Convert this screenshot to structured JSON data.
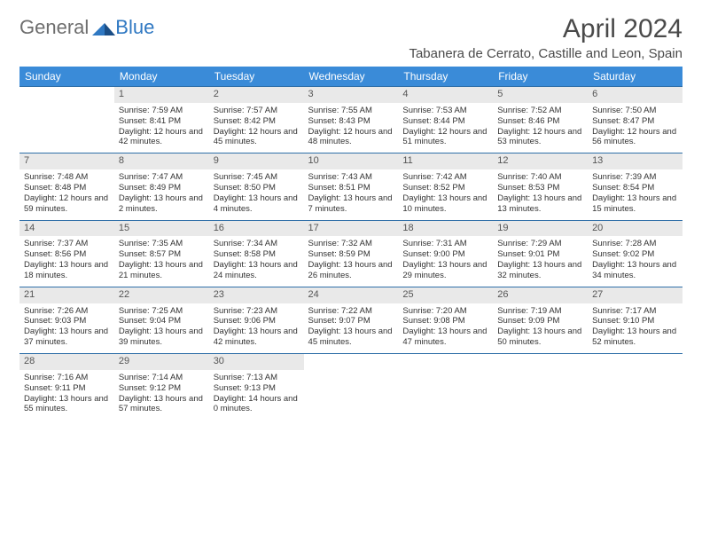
{
  "logo": {
    "word1": "General",
    "word2": "Blue",
    "word_color": "#6e6e6e",
    "accent_color": "#2f78c2"
  },
  "title": "April 2024",
  "location": "Tabanera de Cerrato, Castille and Leon, Spain",
  "header_bg": "#3a8bd8",
  "header_fg": "#ffffff",
  "daynum_bg": "#e9e9e9",
  "week_border": "#2f6fa8",
  "day_names": [
    "Sunday",
    "Monday",
    "Tuesday",
    "Wednesday",
    "Thursday",
    "Friday",
    "Saturday"
  ],
  "weeks": [
    [
      {
        "n": "",
        "lines": []
      },
      {
        "n": "1",
        "lines": [
          "Sunrise: 7:59 AM",
          "Sunset: 8:41 PM",
          "Daylight: 12 hours and 42 minutes."
        ]
      },
      {
        "n": "2",
        "lines": [
          "Sunrise: 7:57 AM",
          "Sunset: 8:42 PM",
          "Daylight: 12 hours and 45 minutes."
        ]
      },
      {
        "n": "3",
        "lines": [
          "Sunrise: 7:55 AM",
          "Sunset: 8:43 PM",
          "Daylight: 12 hours and 48 minutes."
        ]
      },
      {
        "n": "4",
        "lines": [
          "Sunrise: 7:53 AM",
          "Sunset: 8:44 PM",
          "Daylight: 12 hours and 51 minutes."
        ]
      },
      {
        "n": "5",
        "lines": [
          "Sunrise: 7:52 AM",
          "Sunset: 8:46 PM",
          "Daylight: 12 hours and 53 minutes."
        ]
      },
      {
        "n": "6",
        "lines": [
          "Sunrise: 7:50 AM",
          "Sunset: 8:47 PM",
          "Daylight: 12 hours and 56 minutes."
        ]
      }
    ],
    [
      {
        "n": "7",
        "lines": [
          "Sunrise: 7:48 AM",
          "Sunset: 8:48 PM",
          "Daylight: 12 hours and 59 minutes."
        ]
      },
      {
        "n": "8",
        "lines": [
          "Sunrise: 7:47 AM",
          "Sunset: 8:49 PM",
          "Daylight: 13 hours and 2 minutes."
        ]
      },
      {
        "n": "9",
        "lines": [
          "Sunrise: 7:45 AM",
          "Sunset: 8:50 PM",
          "Daylight: 13 hours and 4 minutes."
        ]
      },
      {
        "n": "10",
        "lines": [
          "Sunrise: 7:43 AM",
          "Sunset: 8:51 PM",
          "Daylight: 13 hours and 7 minutes."
        ]
      },
      {
        "n": "11",
        "lines": [
          "Sunrise: 7:42 AM",
          "Sunset: 8:52 PM",
          "Daylight: 13 hours and 10 minutes."
        ]
      },
      {
        "n": "12",
        "lines": [
          "Sunrise: 7:40 AM",
          "Sunset: 8:53 PM",
          "Daylight: 13 hours and 13 minutes."
        ]
      },
      {
        "n": "13",
        "lines": [
          "Sunrise: 7:39 AM",
          "Sunset: 8:54 PM",
          "Daylight: 13 hours and 15 minutes."
        ]
      }
    ],
    [
      {
        "n": "14",
        "lines": [
          "Sunrise: 7:37 AM",
          "Sunset: 8:56 PM",
          "Daylight: 13 hours and 18 minutes."
        ]
      },
      {
        "n": "15",
        "lines": [
          "Sunrise: 7:35 AM",
          "Sunset: 8:57 PM",
          "Daylight: 13 hours and 21 minutes."
        ]
      },
      {
        "n": "16",
        "lines": [
          "Sunrise: 7:34 AM",
          "Sunset: 8:58 PM",
          "Daylight: 13 hours and 24 minutes."
        ]
      },
      {
        "n": "17",
        "lines": [
          "Sunrise: 7:32 AM",
          "Sunset: 8:59 PM",
          "Daylight: 13 hours and 26 minutes."
        ]
      },
      {
        "n": "18",
        "lines": [
          "Sunrise: 7:31 AM",
          "Sunset: 9:00 PM",
          "Daylight: 13 hours and 29 minutes."
        ]
      },
      {
        "n": "19",
        "lines": [
          "Sunrise: 7:29 AM",
          "Sunset: 9:01 PM",
          "Daylight: 13 hours and 32 minutes."
        ]
      },
      {
        "n": "20",
        "lines": [
          "Sunrise: 7:28 AM",
          "Sunset: 9:02 PM",
          "Daylight: 13 hours and 34 minutes."
        ]
      }
    ],
    [
      {
        "n": "21",
        "lines": [
          "Sunrise: 7:26 AM",
          "Sunset: 9:03 PM",
          "Daylight: 13 hours and 37 minutes."
        ]
      },
      {
        "n": "22",
        "lines": [
          "Sunrise: 7:25 AM",
          "Sunset: 9:04 PM",
          "Daylight: 13 hours and 39 minutes."
        ]
      },
      {
        "n": "23",
        "lines": [
          "Sunrise: 7:23 AM",
          "Sunset: 9:06 PM",
          "Daylight: 13 hours and 42 minutes."
        ]
      },
      {
        "n": "24",
        "lines": [
          "Sunrise: 7:22 AM",
          "Sunset: 9:07 PM",
          "Daylight: 13 hours and 45 minutes."
        ]
      },
      {
        "n": "25",
        "lines": [
          "Sunrise: 7:20 AM",
          "Sunset: 9:08 PM",
          "Daylight: 13 hours and 47 minutes."
        ]
      },
      {
        "n": "26",
        "lines": [
          "Sunrise: 7:19 AM",
          "Sunset: 9:09 PM",
          "Daylight: 13 hours and 50 minutes."
        ]
      },
      {
        "n": "27",
        "lines": [
          "Sunrise: 7:17 AM",
          "Sunset: 9:10 PM",
          "Daylight: 13 hours and 52 minutes."
        ]
      }
    ],
    [
      {
        "n": "28",
        "lines": [
          "Sunrise: 7:16 AM",
          "Sunset: 9:11 PM",
          "Daylight: 13 hours and 55 minutes."
        ]
      },
      {
        "n": "29",
        "lines": [
          "Sunrise: 7:14 AM",
          "Sunset: 9:12 PM",
          "Daylight: 13 hours and 57 minutes."
        ]
      },
      {
        "n": "30",
        "lines": [
          "Sunrise: 7:13 AM",
          "Sunset: 9:13 PM",
          "Daylight: 14 hours and 0 minutes."
        ]
      },
      {
        "n": "",
        "lines": []
      },
      {
        "n": "",
        "lines": []
      },
      {
        "n": "",
        "lines": []
      },
      {
        "n": "",
        "lines": []
      }
    ]
  ]
}
